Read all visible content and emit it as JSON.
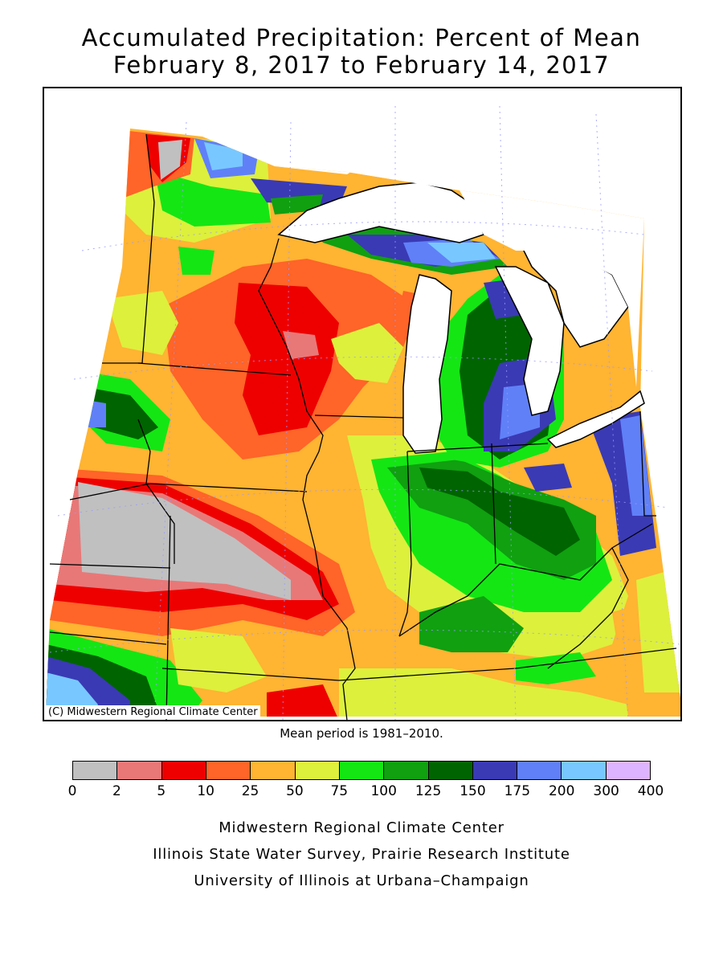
{
  "title": {
    "line1": "Accumulated Precipitation: Percent of Mean",
    "line2": "February 8, 2017 to February 14, 2017"
  },
  "map": {
    "credit": "(C) Midwestern Regional Climate Center",
    "regions_shown": [
      "Minnesota",
      "Wisconsin",
      "Iowa",
      "Illinois",
      "Indiana",
      "Michigan",
      "Ohio",
      "Missouri",
      "Kentucky"
    ],
    "colors": {
      "lake": "#ffffff",
      "state_border": "#000000",
      "grid_dotted": "#9a9aff"
    }
  },
  "mean_period": "Mean period is 1981–2010.",
  "legend": {
    "bins": [
      {
        "from": "0",
        "to": "2",
        "color": "#c0c0c0"
      },
      {
        "from": "2",
        "to": "5",
        "color": "#e87878"
      },
      {
        "from": "5",
        "to": "10",
        "color": "#ee0000"
      },
      {
        "from": "10",
        "to": "25",
        "color": "#ff6428"
      },
      {
        "from": "25",
        "to": "50",
        "color": "#ffb432"
      },
      {
        "from": "50",
        "to": "75",
        "color": "#ddf03c"
      },
      {
        "from": "75",
        "to": "100",
        "color": "#14e614"
      },
      {
        "from": "100",
        "to": "125",
        "color": "#10a010"
      },
      {
        "from": "125",
        "to": "150",
        "color": "#006400"
      },
      {
        "from": "150",
        "to": "175",
        "color": "#3a3ab4"
      },
      {
        "from": "175",
        "to": "200",
        "color": "#6080f8"
      },
      {
        "from": "200",
        "to": "300",
        "color": "#78c8ff"
      },
      {
        "from": "300",
        "to": "400",
        "color": "#dcb4ff"
      }
    ],
    "ticks": [
      "0",
      "2",
      "5",
      "10",
      "25",
      "50",
      "75",
      "100",
      "125",
      "150",
      "175",
      "200",
      "300",
      "400"
    ]
  },
  "footer": {
    "line1": "Midwestern Regional Climate Center",
    "line2": "Illinois State Water Survey, Prairie Research Institute",
    "line3": "University of Illinois at Urbana–Champaign"
  }
}
